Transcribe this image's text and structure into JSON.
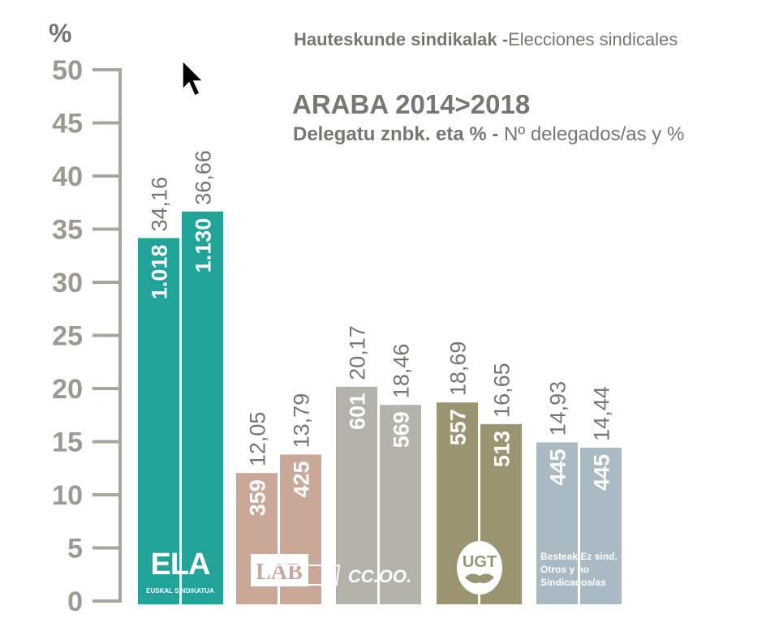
{
  "header": {
    "supertitle_bold": "Hauteskunde sindikalak -",
    "supertitle_thin": "Elecciones sindicales",
    "title": "ARABA 2014>2018",
    "subtitle_bold": "Delegatu znbk. eta % -",
    "subtitle_thin": " Nº delegados/as y %"
  },
  "chart_data": {
    "type": "bar",
    "title": "ARABA 2014>2018",
    "ylabel": "%",
    "ylim": [
      0,
      50
    ],
    "yticks": [
      "0",
      "5",
      "10",
      "15",
      "20",
      "25",
      "30",
      "35",
      "40",
      "45",
      "50"
    ],
    "categories": [
      "ELA",
      "LAB",
      "CCOO",
      "UGT",
      "Besteak/Ez sind. Otros y no Sindicados/as"
    ],
    "series": [
      {
        "name": "2014",
        "values": [
          34.16,
          12.05,
          20.17,
          18.69,
          14.93
        ],
        "labels": [
          "34,16",
          "12,05",
          "20,17",
          "18,69",
          "14,93"
        ],
        "delegates": [
          "1.018",
          "359",
          "601",
          "557",
          "445"
        ]
      },
      {
        "name": "2018",
        "values": [
          36.66,
          13.79,
          18.46,
          16.65,
          14.44
        ],
        "labels": [
          "36,66",
          "13,79",
          "18,46",
          "16,65",
          "14,44"
        ],
        "delegates": [
          "1.130",
          "425",
          "569",
          "513",
          "445"
        ]
      }
    ],
    "colors": [
      "#22a39a",
      "#c9a898",
      "#b3b3aa",
      "#9a9470",
      "#a9bac4"
    ],
    "logos": [
      {
        "main": "ELA",
        "sub": "EUSKAL SINDIKATUA"
      },
      {
        "main": "LAB"
      },
      {
        "main": "CC.OO."
      },
      {
        "main": "UGT"
      },
      {
        "lines": [
          "Besteak/Ez sind.",
          "Otros y  no",
          "Sindicados/as"
        ]
      }
    ]
  }
}
